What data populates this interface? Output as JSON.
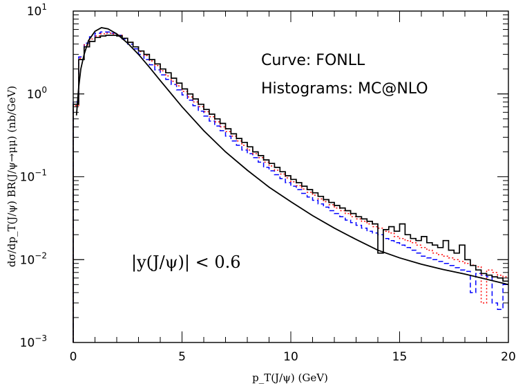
{
  "chart_data": {
    "type": "line",
    "xlabel": "p_T(J/ψ) (GeV)",
    "ylabel": "dσ/dp_T(J/ψ)  BR(J/ψ→μμ) (nb/GeV)",
    "xlim": [
      0,
      20
    ],
    "ylim": [
      0.001,
      10
    ],
    "yscale": "log",
    "x_ticks": [
      0,
      5,
      10,
      15,
      20
    ],
    "y_ticks": [
      {
        "base": "10",
        "exp": "−3",
        "value": 0.001
      },
      {
        "base": "10",
        "exp": "−2",
        "value": 0.01
      },
      {
        "base": "10",
        "exp": "−1",
        "value": 0.1
      },
      {
        "base": "10",
        "exp": "0",
        "value": 1
      },
      {
        "base": "10",
        "exp": "1",
        "value": 10
      }
    ],
    "annotations": {
      "curve": "Curve: FONLL",
      "histograms": "Histograms: MC@NLO",
      "cut": "|y(J/ψ)| < 0.6"
    },
    "series": [
      {
        "style": "curve",
        "color": "#000000",
        "x": [
          0.15,
          0.25,
          0.35,
          0.5,
          0.7,
          1.0,
          1.3,
          1.6,
          2.0,
          2.5,
          3.0,
          3.5,
          4.0,
          5.0,
          6.0,
          7.0,
          8.0,
          9.0,
          10.0,
          11.0,
          12.0,
          13.0,
          14.0,
          15.0,
          16.0,
          17.0,
          18.0,
          19.0,
          20.0
        ],
        "values": [
          0.55,
          1.2,
          2.0,
          3.0,
          4.4,
          5.7,
          6.3,
          6.1,
          5.3,
          4.1,
          3.0,
          2.1,
          1.45,
          0.7,
          0.36,
          0.2,
          0.12,
          0.075,
          0.05,
          0.034,
          0.024,
          0.0175,
          0.013,
          0.0105,
          0.0088,
          0.0076,
          0.0067,
          0.0058,
          0.005
        ]
      },
      {
        "style": "solid-hist",
        "color": "#000000",
        "x": [
          0.0,
          0.25,
          0.5,
          0.75,
          1.0,
          1.25,
          1.5,
          1.75,
          2.0,
          2.25,
          2.5,
          2.75,
          3.0,
          3.25,
          3.5,
          3.75,
          4.0,
          4.25,
          4.5,
          4.75,
          5.0,
          5.25,
          5.5,
          5.75,
          6.0,
          6.25,
          6.5,
          6.75,
          7.0,
          7.25,
          7.5,
          7.75,
          8.0,
          8.25,
          8.5,
          8.75,
          9.0,
          9.25,
          9.5,
          9.75,
          10.0,
          10.25,
          10.5,
          10.75,
          11.0,
          11.25,
          11.5,
          11.75,
          12.0,
          12.25,
          12.5,
          12.75,
          13.0,
          13.25,
          13.5,
          13.75,
          14.0,
          14.25,
          14.5,
          14.75,
          15.0,
          15.25,
          15.5,
          15.75,
          16.0,
          16.25,
          16.5,
          16.75,
          17.0,
          17.25,
          17.5,
          17.75,
          18.0,
          18.25,
          18.5,
          18.75,
          19.0,
          19.25,
          19.5,
          19.75
        ],
        "values": [
          0.75,
          2.6,
          3.7,
          4.3,
          4.8,
          5.0,
          5.1,
          5.1,
          5.0,
          4.7,
          4.2,
          3.7,
          3.3,
          3.0,
          2.6,
          2.3,
          2.0,
          1.8,
          1.55,
          1.35,
          1.15,
          1.0,
          0.87,
          0.75,
          0.65,
          0.57,
          0.5,
          0.44,
          0.38,
          0.33,
          0.29,
          0.26,
          0.23,
          0.2,
          0.18,
          0.16,
          0.145,
          0.13,
          0.115,
          0.103,
          0.093,
          0.085,
          0.077,
          0.07,
          0.064,
          0.058,
          0.053,
          0.049,
          0.045,
          0.042,
          0.039,
          0.036,
          0.033,
          0.031,
          0.029,
          0.027,
          0.012,
          0.023,
          0.025,
          0.022,
          0.027,
          0.02,
          0.018,
          0.017,
          0.019,
          0.016,
          0.015,
          0.014,
          0.017,
          0.013,
          0.012,
          0.015,
          0.01,
          0.0085,
          0.0075,
          0.0068,
          0.0065,
          0.0062,
          0.006,
          0.0055
        ]
      },
      {
        "style": "dotted-hist",
        "color": "#ff0000",
        "x": [
          0.0,
          0.25,
          0.5,
          0.75,
          1.0,
          1.25,
          1.5,
          1.75,
          2.0,
          2.25,
          2.5,
          2.75,
          3.0,
          3.25,
          3.5,
          3.75,
          4.0,
          4.25,
          4.5,
          4.75,
          5.0,
          5.25,
          5.5,
          5.75,
          6.0,
          6.25,
          6.5,
          6.75,
          7.0,
          7.25,
          7.5,
          7.75,
          8.0,
          8.25,
          8.5,
          8.75,
          9.0,
          9.25,
          9.5,
          9.75,
          10.0,
          10.25,
          10.5,
          10.75,
          11.0,
          11.25,
          11.5,
          11.75,
          12.0,
          12.25,
          12.5,
          12.75,
          13.0,
          13.25,
          13.5,
          13.75,
          14.0,
          14.25,
          14.5,
          14.75,
          15.0,
          15.25,
          15.5,
          15.75,
          16.0,
          16.25,
          16.5,
          16.75,
          17.0,
          17.25,
          17.5,
          17.75,
          18.0,
          18.25,
          18.5,
          18.75,
          19.0,
          19.25,
          19.5,
          19.75
        ],
        "values": [
          0.72,
          2.7,
          3.9,
          4.6,
          5.0,
          5.3,
          5.4,
          5.3,
          5.1,
          4.7,
          4.2,
          3.7,
          3.25,
          2.9,
          2.5,
          2.2,
          1.9,
          1.65,
          1.42,
          1.25,
          1.07,
          0.92,
          0.8,
          0.7,
          0.61,
          0.53,
          0.46,
          0.4,
          0.35,
          0.31,
          0.27,
          0.24,
          0.21,
          0.19,
          0.17,
          0.15,
          0.135,
          0.12,
          0.108,
          0.097,
          0.087,
          0.078,
          0.071,
          0.065,
          0.06,
          0.054,
          0.05,
          0.046,
          0.042,
          0.039,
          0.036,
          0.033,
          0.031,
          0.029,
          0.027,
          0.025,
          0.024,
          0.022,
          0.021,
          0.019,
          0.018,
          0.017,
          0.016,
          0.015,
          0.014,
          0.013,
          0.012,
          0.0115,
          0.011,
          0.0105,
          0.01,
          0.0095,
          0.009,
          0.0086,
          0.0082,
          0.003,
          0.0075,
          0.007,
          0.0065,
          0.0062
        ]
      },
      {
        "style": "dashed-hist",
        "color": "#0000ff",
        "x": [
          0.0,
          0.25,
          0.5,
          0.75,
          1.0,
          1.25,
          1.5,
          1.75,
          2.0,
          2.25,
          2.5,
          2.75,
          3.0,
          3.25,
          3.5,
          3.75,
          4.0,
          4.25,
          4.5,
          4.75,
          5.0,
          5.25,
          5.5,
          5.75,
          6.0,
          6.25,
          6.5,
          6.75,
          7.0,
          7.25,
          7.5,
          7.75,
          8.0,
          8.25,
          8.5,
          8.75,
          9.0,
          9.25,
          9.5,
          9.75,
          10.0,
          10.25,
          10.5,
          10.75,
          11.0,
          11.25,
          11.5,
          11.75,
          12.0,
          12.25,
          12.5,
          12.75,
          13.0,
          13.25,
          13.5,
          13.75,
          14.0,
          14.25,
          14.5,
          14.75,
          15.0,
          15.25,
          15.5,
          15.75,
          16.0,
          16.25,
          16.5,
          16.75,
          17.0,
          17.25,
          17.5,
          17.75,
          18.0,
          18.25,
          18.5,
          18.75,
          19.0,
          19.25,
          19.5,
          19.75
        ],
        "values": [
          0.8,
          2.8,
          4.1,
          4.9,
          5.4,
          5.6,
          5.6,
          5.4,
          5.1,
          4.6,
          4.0,
          3.5,
          3.0,
          2.6,
          2.25,
          1.95,
          1.7,
          1.5,
          1.3,
          1.12,
          0.97,
          0.84,
          0.72,
          0.62,
          0.54,
          0.47,
          0.41,
          0.36,
          0.31,
          0.27,
          0.24,
          0.21,
          0.19,
          0.17,
          0.15,
          0.13,
          0.118,
          0.106,
          0.095,
          0.085,
          0.077,
          0.07,
          0.063,
          0.057,
          0.052,
          0.047,
          0.043,
          0.039,
          0.036,
          0.033,
          0.03,
          0.028,
          0.026,
          0.024,
          0.022,
          0.021,
          0.02,
          0.018,
          0.017,
          0.016,
          0.015,
          0.014,
          0.013,
          0.012,
          0.011,
          0.0105,
          0.01,
          0.0095,
          0.009,
          0.0085,
          0.008,
          0.0075,
          0.0072,
          0.004,
          0.0068,
          0.0065,
          0.0062,
          0.003,
          0.0025,
          0.005
        ]
      }
    ]
  }
}
